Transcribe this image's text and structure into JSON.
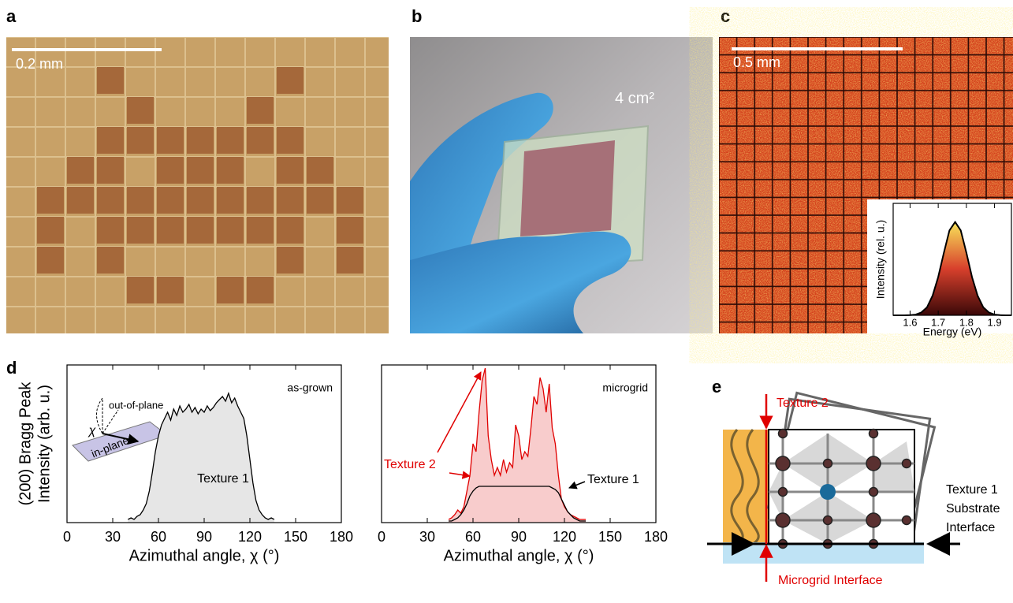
{
  "panel_labels": [
    "a",
    "b",
    "c",
    "d",
    "e"
  ],
  "panel_a": {
    "scale_bar": "0.2 mm"
  },
  "panel_b": {
    "area": "4 cm²"
  },
  "panel_c": {
    "scale_bar": "0.5 mm"
  },
  "panel_e": {
    "labels": [
      "Texture 2",
      "Texture 1",
      "Substrate",
      "Interface",
      "Microgrid Interface"
    ]
  },
  "chart_data": [
    {
      "type": "line",
      "xlabel": "Energy (eV)",
      "ylabel": [
        "Intensity (rel. u.)"
      ],
      "x": [
        1.54,
        1.56,
        1.58,
        1.6,
        1.62,
        1.64,
        1.66,
        1.68,
        1.7,
        1.72,
        1.74,
        1.76,
        1.78,
        1.8,
        1.82,
        1.84,
        1.86,
        1.88,
        1.9,
        1.92,
        1.94,
        1.96
      ],
      "series": [
        {
          "color": "#000000",
          "fill_gradient": [
            "#f8e45a",
            "#d8402c",
            "#3a0808"
          ],
          "values": [
            0,
            0,
            0,
            0.002,
            0.008,
            0.03,
            0.085,
            0.21,
            0.41,
            0.67,
            0.91,
            1,
            0.91,
            0.67,
            0.41,
            0.21,
            0.085,
            0.03,
            0.008,
            0.002,
            0,
            0
          ]
        }
      ],
      "xlim": [
        1.54,
        1.96
      ],
      "ylim": [
        0,
        1.2
      ],
      "xticks": [
        1.6,
        1.7,
        1.8,
        1.9
      ]
    },
    {
      "type": "line",
      "xlabel": "Azimuthal angle, χ (°)",
      "ylabel": [
        "(200) Bragg Peak",
        "Intensity (arb. u.)"
      ],
      "annotations": [
        "as-grown",
        "Texture 1",
        "χ",
        "out-of-plane",
        "in-plane"
      ],
      "x": [
        40,
        42,
        44,
        46,
        48,
        50,
        52,
        54,
        56,
        58,
        60,
        62,
        64,
        66,
        68,
        70,
        72,
        74,
        76,
        78,
        80,
        82,
        84,
        86,
        88,
        90,
        92,
        94,
        96,
        98,
        100,
        102,
        104,
        106,
        108,
        110,
        112,
        114,
        116,
        118,
        120,
        122,
        124,
        126,
        128,
        130,
        132,
        134,
        136
      ],
      "series": [
        {
          "color": "#000000",
          "fill": "#e6e6e6",
          "values": [
            0.02,
            0.03,
            0.02,
            0.04,
            0.05,
            0.08,
            0.12,
            0.2,
            0.32,
            0.45,
            0.55,
            0.62,
            0.66,
            0.7,
            0.65,
            0.72,
            0.68,
            0.74,
            0.7,
            0.72,
            0.75,
            0.7,
            0.73,
            0.69,
            0.72,
            0.7,
            0.74,
            0.71,
            0.73,
            0.76,
            0.78,
            0.8,
            0.77,
            0.82,
            0.76,
            0.79,
            0.74,
            0.7,
            0.66,
            0.55,
            0.4,
            0.25,
            0.14,
            0.08,
            0.05,
            0.03,
            0.02,
            0.03,
            0.02
          ]
        }
      ],
      "xlim": [
        0,
        180
      ],
      "ylim": [
        0,
        1
      ],
      "xticks": [
        0,
        30,
        60,
        90,
        120,
        150,
        180
      ]
    },
    {
      "type": "line",
      "xlabel": "Azimuthal angle, χ (°)",
      "annotations": [
        "microgrid",
        "Texture 2",
        "Texture 1"
      ],
      "x": [
        44,
        46,
        48,
        50,
        52,
        54,
        56,
        58,
        60,
        62,
        64,
        66,
        68,
        70,
        72,
        74,
        76,
        78,
        80,
        82,
        84,
        86,
        88,
        90,
        92,
        94,
        96,
        98,
        100,
        102,
        104,
        106,
        108,
        110,
        112,
        114,
        116,
        118,
        120,
        122,
        124,
        126,
        128,
        130,
        132,
        134
      ],
      "series": [
        {
          "color": "#e00000",
          "fill": "#f8cccc",
          "values": [
            0.02,
            0.03,
            0.05,
            0.08,
            0.06,
            0.1,
            0.2,
            0.3,
            0.5,
            0.45,
            0.7,
            0.9,
            0.98,
            0.55,
            0.4,
            0.3,
            0.35,
            0.3,
            0.4,
            0.32,
            0.38,
            0.35,
            0.62,
            0.55,
            0.4,
            0.45,
            0.42,
            0.6,
            0.8,
            0.75,
            0.92,
            0.85,
            0.7,
            0.88,
            0.6,
            0.5,
            0.3,
            0.15,
            0.1,
            0.07,
            0.05,
            0.04,
            0.03,
            0.02,
            0.02,
            0.02
          ]
        },
        {
          "color": "#000000",
          "values": [
            0.01,
            0.01,
            0.02,
            0.03,
            0.05,
            0.08,
            0.12,
            0.17,
            0.2,
            0.22,
            0.23,
            0.23,
            0.23,
            0.23,
            0.23,
            0.23,
            0.23,
            0.23,
            0.23,
            0.23,
            0.23,
            0.23,
            0.23,
            0.23,
            0.23,
            0.23,
            0.23,
            0.23,
            0.23,
            0.23,
            0.23,
            0.23,
            0.23,
            0.23,
            0.22,
            0.21,
            0.19,
            0.15,
            0.11,
            0.07,
            0.05,
            0.03,
            0.02,
            0.01,
            0.01,
            0.01
          ]
        }
      ],
      "xlim": [
        0,
        180
      ],
      "ylim": [
        0,
        1
      ],
      "xticks": [
        0,
        30,
        60,
        90,
        120,
        150,
        180
      ]
    }
  ]
}
